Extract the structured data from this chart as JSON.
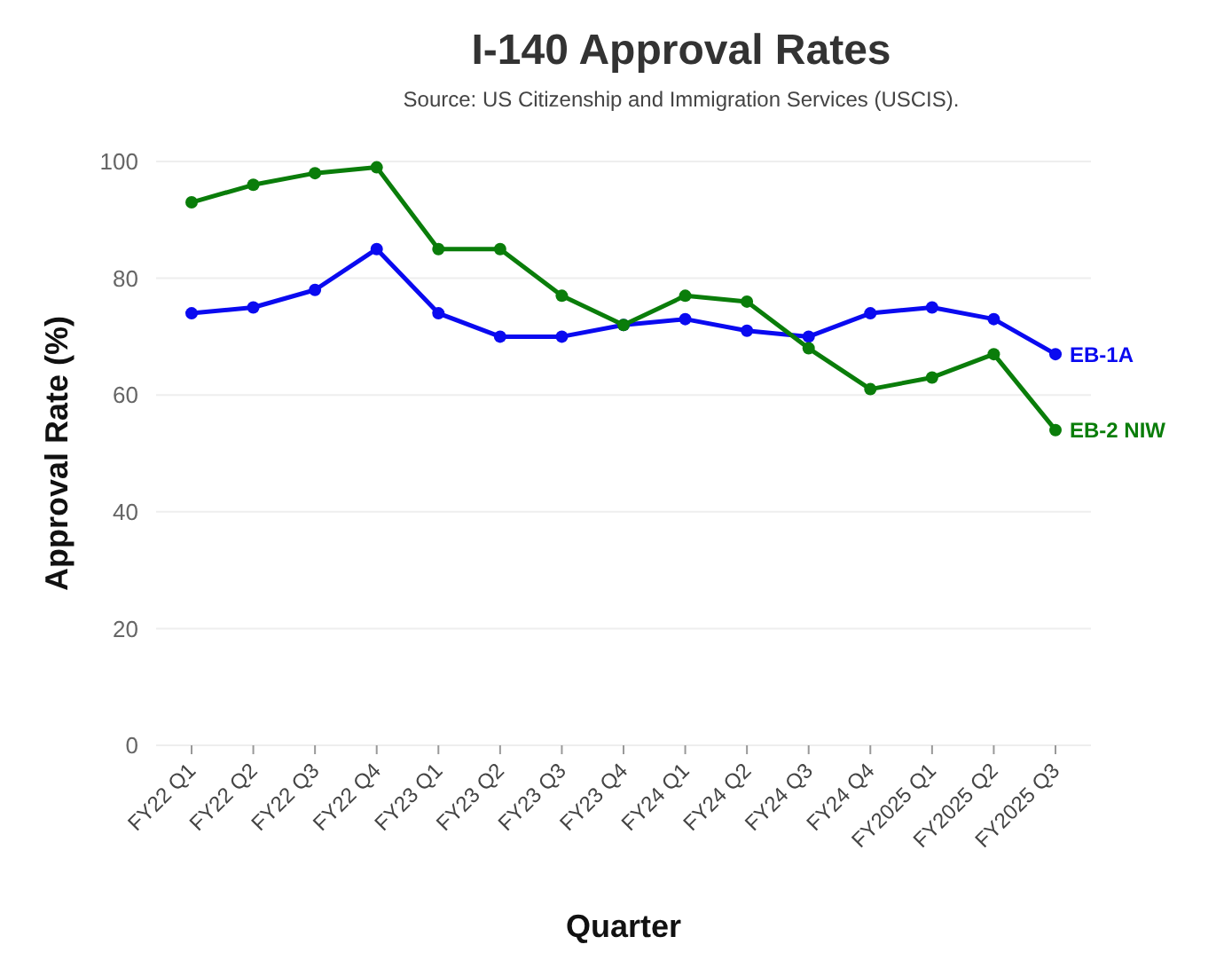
{
  "chart_data": {
    "type": "line",
    "title": "I-140 Approval Rates",
    "subtitle": "Source: US Citizenship and Immigration Services (USCIS).",
    "xlabel": "Quarter",
    "ylabel": "Approval Rate (%)",
    "categories": [
      "FY22 Q1",
      "FY22 Q2",
      "FY22 Q3",
      "FY22 Q4",
      "FY23 Q1",
      "FY23 Q2",
      "FY23 Q3",
      "FY23 Q4",
      "FY24 Q1",
      "FY24 Q2",
      "FY24 Q3",
      "FY24 Q4",
      "FY2025 Q1",
      "FY2025 Q2",
      "FY2025 Q3"
    ],
    "series": [
      {
        "name": "EB-1A",
        "color": "#0a0af0",
        "values": [
          74,
          75,
          78,
          85,
          74,
          70,
          70,
          72,
          73,
          71,
          70,
          74,
          75,
          73,
          67
        ]
      },
      {
        "name": "EB-2 NIW",
        "color": "#0a7d0a",
        "values": [
          93,
          96,
          98,
          99,
          85,
          85,
          77,
          72,
          77,
          76,
          68,
          61,
          63,
          67,
          54
        ]
      }
    ],
    "ylim": [
      0,
      100
    ],
    "yticks": [
      0,
      20,
      40,
      60,
      80,
      100
    ],
    "grid": "y",
    "marker": "circle",
    "line_style": "solid"
  }
}
